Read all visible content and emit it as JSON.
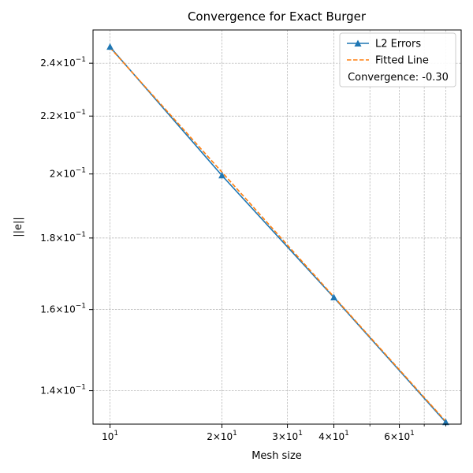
{
  "chart_data": {
    "type": "line",
    "title": "Convergence for Exact Burger",
    "xlabel": "Mesh size",
    "ylabel": "||e||",
    "xscale": "log",
    "yscale": "log",
    "xlim": [
      9.0,
      88.0
    ],
    "ylim": [
      0.1325,
      0.2535
    ],
    "grid": true,
    "legend_position": "top-right",
    "x": [
      10,
      20,
      40,
      80
    ],
    "series": [
      {
        "name": "L2 Errors",
        "values": [
          0.2465,
          0.1995,
          0.1632,
          0.1329
        ],
        "color": "#1f77b4",
        "marker": "triangle",
        "linestyle": "solid"
      },
      {
        "name": "Fitted Line",
        "values": [
          0.2462,
          0.2006,
          0.1634,
          0.1331
        ],
        "color": "#ff7f0e",
        "marker": "none",
        "linestyle": "dashed"
      }
    ],
    "annotation": "Convergence: -0.30",
    "x_major_ticks": [
      {
        "value": 10,
        "mantissa": "",
        "exp": "1"
      },
      {
        "value": 20,
        "mantissa": "2",
        "exp": "1"
      },
      {
        "value": 30,
        "mantissa": "3",
        "exp": "1"
      },
      {
        "value": 40,
        "mantissa": "4",
        "exp": "1"
      },
      {
        "value": 60,
        "mantissa": "6",
        "exp": "1"
      }
    ],
    "x_minor_ticks": [
      50,
      70,
      80
    ],
    "y_major_ticks": [
      {
        "value": 0.14,
        "mantissa": "1.4",
        "exp": "−1"
      },
      {
        "value": 0.16,
        "mantissa": "1.6",
        "exp": "−1"
      },
      {
        "value": 0.18,
        "mantissa": "1.8",
        "exp": "−1"
      },
      {
        "value": 0.2,
        "mantissa": "2",
        "exp": "−1"
      },
      {
        "value": 0.22,
        "mantissa": "2.2",
        "exp": "−1"
      },
      {
        "value": 0.24,
        "mantissa": "2.4",
        "exp": "−1"
      }
    ]
  }
}
